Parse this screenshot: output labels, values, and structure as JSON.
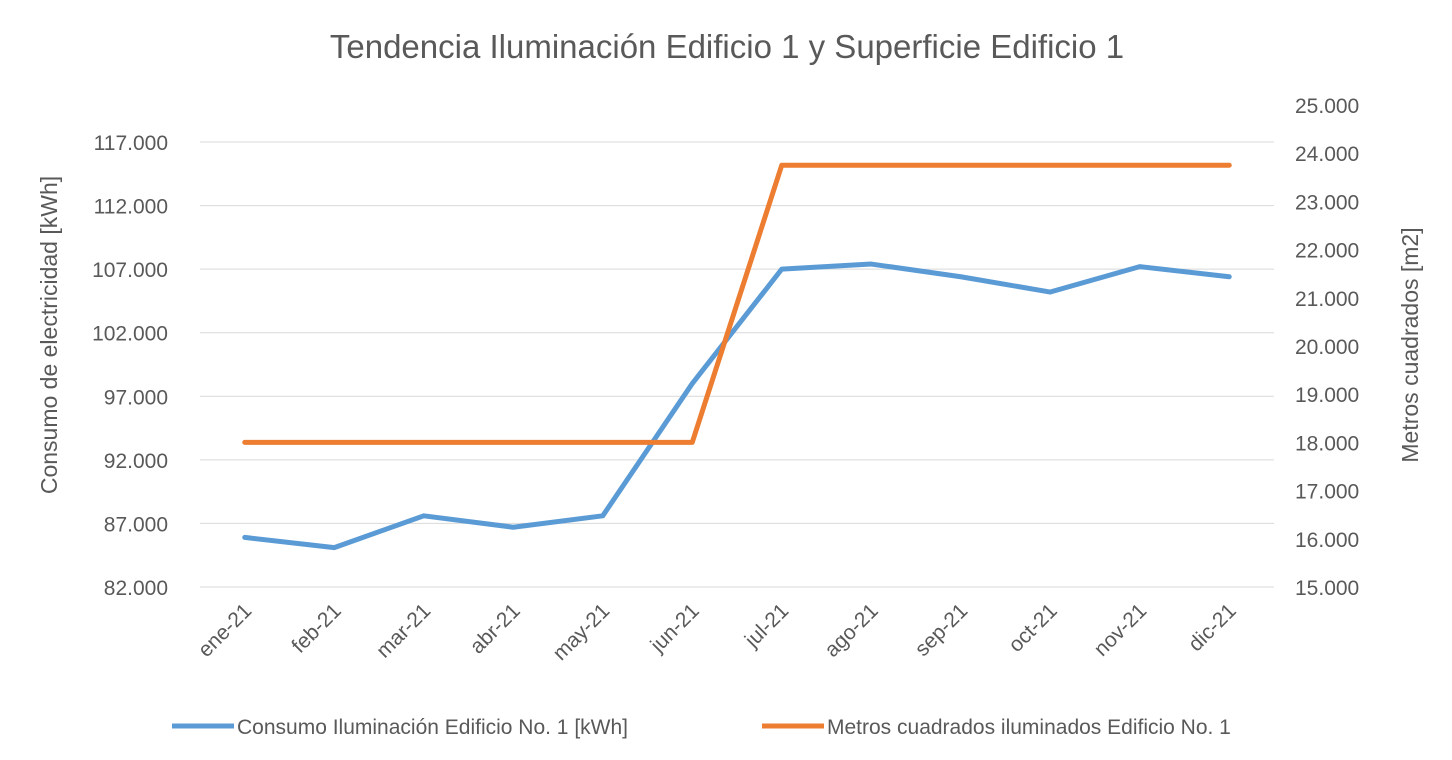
{
  "chart_data": {
    "type": "line",
    "title": "Tendencia Iluminación Edificio 1 y Superficie Edificio 1",
    "categories": [
      "ene-21",
      "feb-21",
      "mar-21",
      "abr-21",
      "may-21",
      "jun-21",
      "jul-21",
      "ago-21",
      "sep-21",
      "oct-21",
      "nov-21",
      "dic-21"
    ],
    "y_left": {
      "label": "Consumo de electricidad [kWh]",
      "ylim": [
        82000,
        117000
      ],
      "ticks": [
        82000,
        87000,
        92000,
        97000,
        102000,
        107000,
        112000,
        117000
      ],
      "tick_labels": [
        "82.000",
        "87.000",
        "92.000",
        "97.000",
        "102.000",
        "107.000",
        "112.000",
        "117.000"
      ]
    },
    "y_right": {
      "label": "Metros cuadrados [m2]",
      "ylim": [
        15000,
        25000
      ],
      "ticks": [
        15000,
        16000,
        17000,
        18000,
        19000,
        20000,
        21000,
        22000,
        23000,
        24000,
        25000
      ],
      "tick_labels": [
        "15.000",
        "16.000",
        "17.000",
        "18.000",
        "19.000",
        "20.000",
        "21.000",
        "22.000",
        "23.000",
        "24.000",
        "25.000"
      ]
    },
    "series": [
      {
        "name": "Consumo Iluminación Edificio No. 1 [kWh]",
        "axis": "left",
        "color": "#5b9bd5",
        "values": [
          85900,
          85100,
          87600,
          86700,
          87600,
          98000,
          107000,
          107400,
          106400,
          105200,
          107200,
          106400
        ]
      },
      {
        "name": "Metros cuadrados iluminados Edificio No. 1",
        "axis": "right",
        "color": "#ed7d31",
        "values": [
          18000,
          18000,
          18000,
          18000,
          18000,
          18000,
          23750,
          23750,
          23750,
          23750,
          23750,
          23750
        ]
      }
    ],
    "grid": true,
    "legend_position": "bottom"
  }
}
